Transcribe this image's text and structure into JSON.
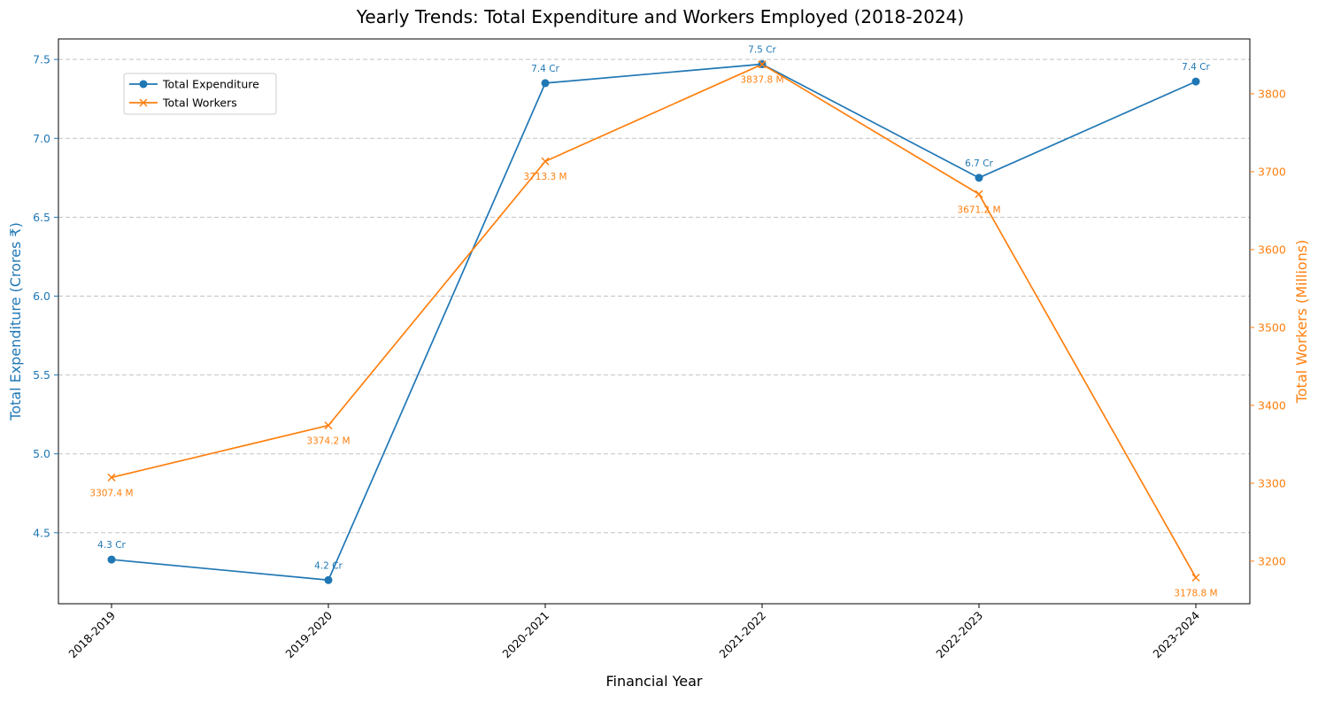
{
  "chart_data": {
    "type": "line",
    "title": "Yearly Trends: Total Expenditure and Workers Employed (2018-2024)",
    "xlabel": "Financial Year",
    "categories": [
      "2018-2019",
      "2019-2020",
      "2020-2021",
      "2021-2022",
      "2022-2023",
      "2023-2024"
    ],
    "grid": true,
    "legend_position": "top-left",
    "series": [
      {
        "name": "Total Expenditure",
        "axis": "left",
        "marker": "circle",
        "color": "#1f77b4",
        "values": [
          4.33,
          4.2,
          7.35,
          7.47,
          6.75,
          7.36
        ],
        "data_labels": [
          "4.3 Cr",
          "4.2 Cr",
          "7.4 Cr",
          "7.5 Cr",
          "6.7 Cr",
          "7.4 Cr"
        ]
      },
      {
        "name": "Total Workers",
        "axis": "right",
        "marker": "x",
        "color": "#ff7f0e",
        "values": [
          3307.4,
          3374.2,
          3713.3,
          3837.8,
          3671.2,
          3178.8
        ],
        "data_labels": [
          "3307.4 M",
          "3374.2 M",
          "3713.3 M",
          "3837.8 M",
          "3671.2 M",
          "3178.8 M"
        ]
      }
    ],
    "y_left": {
      "label": "Total Expenditure (Crores ₹)",
      "color": "#1f77b4",
      "ticks": [
        4.5,
        5.0,
        5.5,
        6.0,
        6.5,
        7.0,
        7.5
      ],
      "tick_labels": [
        "4.5",
        "5.0",
        "5.5",
        "6.0",
        "6.5",
        "7.0",
        "7.5"
      ],
      "ylim": [
        4.05,
        7.63
      ]
    },
    "y_right": {
      "label": "Total Workers (Millions)",
      "color": "#ff7f0e",
      "ticks": [
        3200,
        3300,
        3400,
        3500,
        3600,
        3700,
        3800
      ],
      "tick_labels": [
        "3200",
        "3300",
        "3400",
        "3500",
        "3600",
        "3700",
        "3800"
      ],
      "ylim": [
        3145.3,
        3870.4
      ]
    }
  }
}
